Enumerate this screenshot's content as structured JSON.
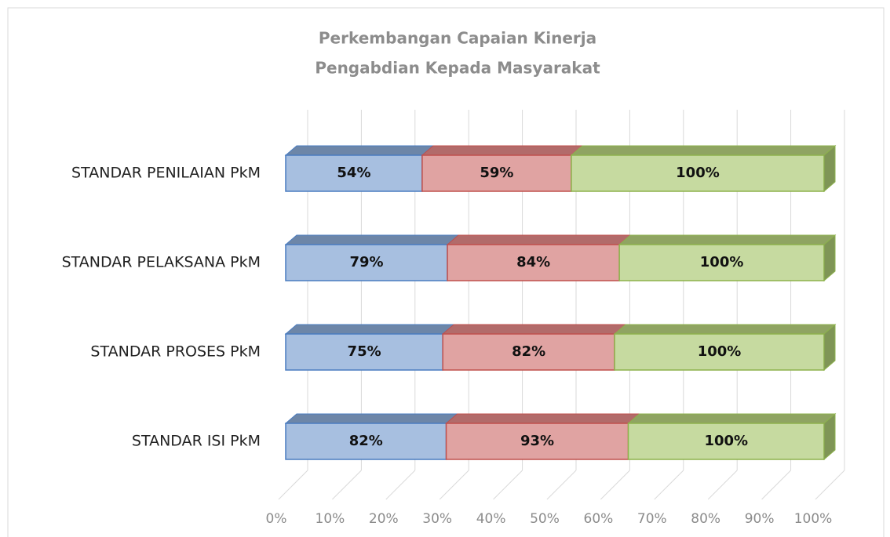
{
  "chart_data": {
    "type": "bar3d-stacked-percent",
    "title": [
      "Perkembangan Capaian Kinerja",
      "Pengabdian Kepada Masyarakat"
    ],
    "categories": [
      "STANDAR PENILAIAN PkM",
      "STANDAR PELAKSANA PkM",
      "STANDAR PROSES PkM",
      "STANDAR ISI PkM"
    ],
    "series": [
      {
        "color": "#a7bfe0",
        "values": [
          54,
          79,
          75,
          82
        ],
        "value_labels": [
          "54%",
          "79%",
          "75%",
          "82%"
        ]
      },
      {
        "color": "#e0a3a2",
        "values": [
          59,
          84,
          82,
          93
        ],
        "value_labels": [
          "59%",
          "84%",
          "82%",
          "93%"
        ]
      },
      {
        "color": "#c6daa0",
        "values": [
          100,
          100,
          100,
          100
        ],
        "value_labels": [
          "100%",
          "100%",
          "100%",
          "100%"
        ]
      }
    ],
    "xlim": [
      0,
      100
    ],
    "xticks": [
      {
        "value": 0,
        "label": "0%"
      },
      {
        "value": 10,
        "label": "10%"
      },
      {
        "value": 20,
        "label": "20%"
      },
      {
        "value": 30,
        "label": "30%"
      },
      {
        "value": 40,
        "label": "40%"
      },
      {
        "value": 50,
        "label": "50%"
      },
      {
        "value": 60,
        "label": "60%"
      },
      {
        "value": 70,
        "label": "70%"
      },
      {
        "value": 80,
        "label": "80%"
      },
      {
        "value": 90,
        "label": "90%"
      },
      {
        "value": 100,
        "label": "100%"
      }
    ],
    "grid": true
  }
}
